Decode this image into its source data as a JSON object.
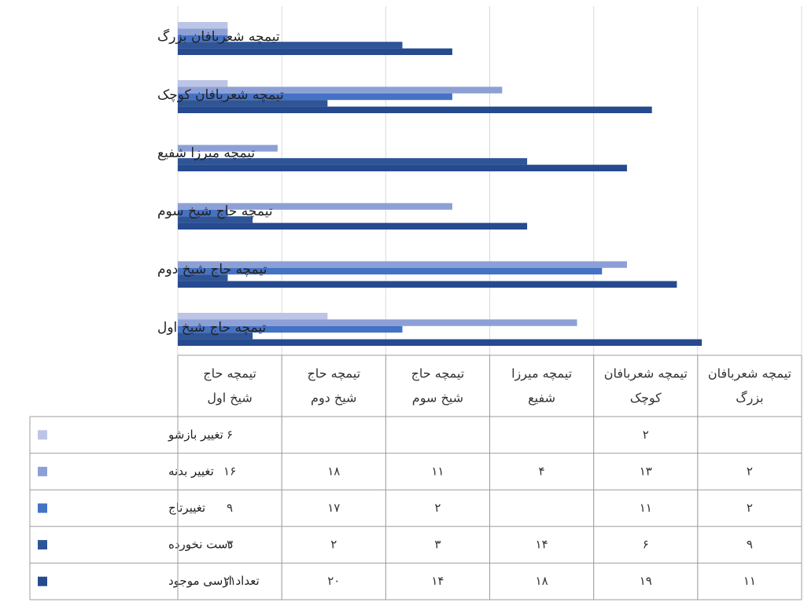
{
  "chart_data": {
    "type": "bar",
    "orientation": "horizontal",
    "title": "",
    "xlabel": "",
    "ylabel": "",
    "xlim": [
      0,
      21
    ],
    "grid": true,
    "legend": "table-left",
    "categories": [
      "تیمچه حاج شیخ اول",
      "تیمچه حاج شیخ دوم",
      "تیمچه حاج شیخ سوم",
      "تیمچه میرزا شفیع",
      "تیمچه شعربافان کوچک",
      "تیمچه شعربافان بزرگ"
    ],
    "table_headers": [
      [
        "تیمچه حاج",
        "شیخ اول"
      ],
      [
        "تیمچه حاج",
        "شیخ دوم"
      ],
      [
        "تیمچه حاج",
        "شیخ سوم"
      ],
      [
        "تیمچه میرزا",
        "شفیع"
      ],
      [
        "تیمچه شعربافان",
        "کوچک"
      ],
      [
        "تیمچه شعربافان",
        "بزرگ"
      ]
    ],
    "series": [
      {
        "name": "تغییر بازشو",
        "color": "#bcc5e6",
        "values": [
          6,
          null,
          null,
          null,
          2,
          2
        ],
        "labels": [
          "۶",
          "",
          "",
          "",
          "۲",
          ""
        ]
      },
      {
        "name": "تغییر بدنه",
        "color": "#8da0d6",
        "values": [
          16,
          18,
          11,
          4,
          13,
          2
        ],
        "labels": [
          "۱۶",
          "۱۸",
          "۱۱",
          "۴",
          "۱۳",
          "۲"
        ]
      },
      {
        "name": "تغییرتاج",
        "color": "#4472c4",
        "values": [
          9,
          17,
          2,
          null,
          11,
          2
        ],
        "labels": [
          "۹",
          "۱۷",
          "۲",
          "",
          "۱۱",
          "۲"
        ]
      },
      {
        "name": "دست نخورده",
        "color": "#2f5597",
        "values": [
          3,
          2,
          3,
          14,
          6,
          9
        ],
        "labels": [
          "۳",
          "۲",
          "۳",
          "۱۴",
          "۶",
          "۹"
        ]
      },
      {
        "name": "تعداد ارسی موجود",
        "color": "#264a8f",
        "values": [
          21,
          20,
          14,
          18,
          19,
          11
        ],
        "labels": [
          "۲۱",
          "۲۰",
          "۱۴",
          "۱۸",
          "۱۹",
          "۱۱"
        ]
      }
    ]
  }
}
